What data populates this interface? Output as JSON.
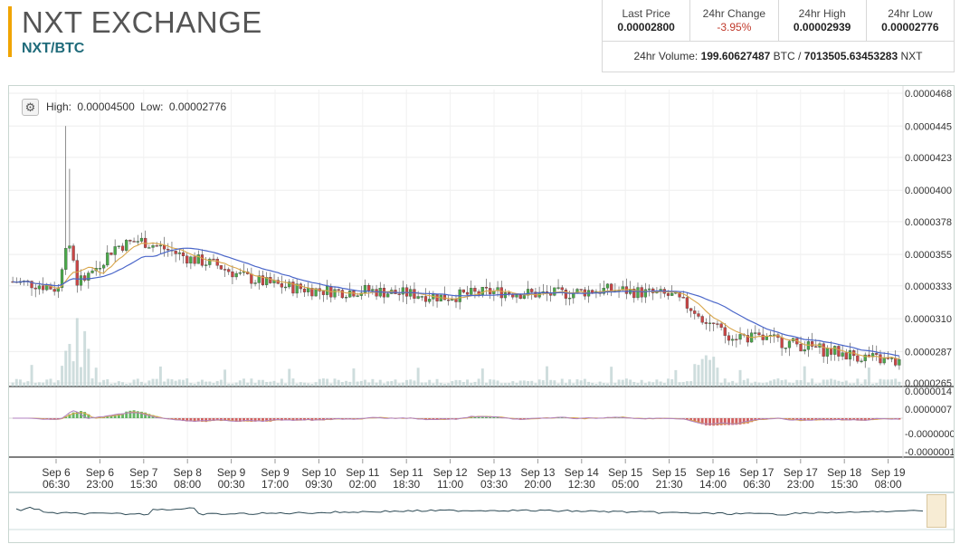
{
  "header": {
    "exchange_name": "NXT EXCHANGE",
    "pair": "NXT/BTC"
  },
  "stats": {
    "last_price_label": "Last Price",
    "last_price": "0.00002800",
    "change_label": "24hr Change",
    "change": "-3.95%",
    "high_label": "24hr High",
    "high": "0.00002939",
    "low_label": "24hr Low",
    "low": "0.00002776",
    "volume_label": "24hr Volume:",
    "volume_btc": "199.60627487",
    "volume_btc_unit": "BTC",
    "volume_sep": "/",
    "volume_nxt": "7013505.63453283",
    "volume_nxt_unit": "NXT"
  },
  "chart": {
    "high_label": "High:",
    "high_value": "0.00004500",
    "low_label": "Low:",
    "low_value": "0.00002776",
    "settings_icon": "gear-icon"
  },
  "chart_data": {
    "type": "candlestick",
    "price_axis_ticks": [
      "0.0000468",
      "0.0000445",
      "0.0000423",
      "0.0000400",
      "0.0000378",
      "0.0000355",
      "0.0000333",
      "0.0000310",
      "0.0000287",
      "0.0000265"
    ],
    "indicator_axis_ticks": [
      "0.0000014",
      "0.0000007",
      "-0.0000000",
      "-0.0000001"
    ],
    "time_axis": [
      [
        "Sep 6",
        "06:30"
      ],
      [
        "Sep 6",
        "23:00"
      ],
      [
        "Sep 7",
        "15:30"
      ],
      [
        "Sep 8",
        "08:00"
      ],
      [
        "Sep 9",
        "00:30"
      ],
      [
        "Sep 9",
        "17:00"
      ],
      [
        "Sep 10",
        "09:30"
      ],
      [
        "Sep 11",
        "02:00"
      ],
      [
        "Sep 11",
        "18:30"
      ],
      [
        "Sep 12",
        "11:00"
      ],
      [
        "Sep 13",
        "03:30"
      ],
      [
        "Sep 13",
        "20:00"
      ],
      [
        "Sep 14",
        "12:30"
      ],
      [
        "Sep 15",
        "05:00"
      ],
      [
        "Sep 15",
        "21:30"
      ],
      [
        "Sep 16",
        "14:00"
      ],
      [
        "Sep 17",
        "06:30"
      ],
      [
        "Sep 17",
        "23:00"
      ],
      [
        "Sep 18",
        "15:30"
      ],
      [
        "Sep 19",
        "08:00"
      ]
    ],
    "price_trend": [
      3.36e-05,
      3.34e-05,
      3.3e-05,
      3.4e-05,
      3.6e-05,
      3.65e-05,
      3.59e-05,
      3.52e-05,
      3.48e-05,
      3.4e-05,
      3.35e-05,
      3.32e-05,
      3.3e-05,
      3.29e-05,
      3.3e-05,
      3.28e-05,
      3.27e-05,
      3.25e-05,
      3.27e-05,
      3.29e-05,
      3.28e-05,
      3.27e-05,
      3.28e-05,
      3.3e-05,
      3.3e-05,
      3.28e-05,
      3.26e-05,
      3.15e-05,
      3e-05,
      2.97e-05,
      2.95e-05,
      2.92e-05,
      2.88e-05,
      2.85e-05,
      2.82e-05,
      2.79e-05
    ],
    "colors": {
      "up": "#4aa84a",
      "down": "#c94545",
      "ma_slow": "#4a66c9",
      "ma_fast": "#d9a64a",
      "volume": "#b9cfcf",
      "navigator": "#2d4a55"
    }
  }
}
